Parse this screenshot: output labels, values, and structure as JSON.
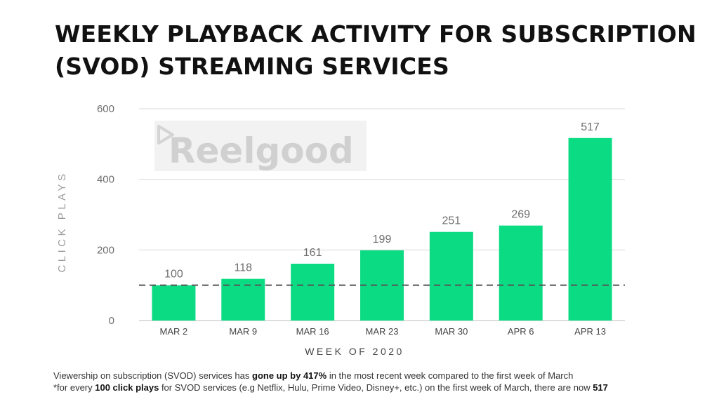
{
  "title": {
    "line1": "WEEKLY PLAYBACK ACTIVITY FOR SUBSCRIPTION",
    "line2": "(SVOD) STREAMING SERVICES"
  },
  "watermark": {
    "text": "Reelgood"
  },
  "chart_data": {
    "type": "bar",
    "title": "WEEKLY PLAYBACK ACTIVITY FOR SUBSCRIPTION (SVOD) STREAMING SERVICES",
    "categories": [
      "MAR 2",
      "MAR 9",
      "MAR 16",
      "MAR 23",
      "MAR 30",
      "APR 6",
      "APR 13"
    ],
    "values": [
      100,
      118,
      161,
      199,
      251,
      269,
      517
    ],
    "data_labels": [
      "100",
      "118",
      "161",
      "199",
      "251",
      "269",
      "517"
    ],
    "xlabel": "WEEK OF 2020",
    "ylabel": "CLICK PLAYS",
    "ylim": [
      0,
      600
    ],
    "yticks": [
      0,
      200,
      400,
      600
    ],
    "ytick_labels": [
      "0",
      "200",
      "400",
      "600"
    ],
    "reference_line": {
      "value": 100,
      "style": "dashed"
    },
    "grid": true,
    "bar_color": "#0bdc84",
    "grid_color": "#d9d9d9",
    "ref_line_color": "#555555",
    "text_color": "#6e6e6e"
  },
  "footnote": {
    "line1_pre": "Viewership on subscription (SVOD) services has ",
    "line1_bold": "gone up by 417%",
    "line1_post": " in the most recent week compared to the first week of March",
    "line2_pre": "*for every ",
    "line2_bold1": "100 click plays",
    "line2_mid": " for SVOD services (e.g Netflix, Hulu, Prime Video, Disney+, etc.) on the first week of March, there are now ",
    "line2_bold2": "517"
  }
}
